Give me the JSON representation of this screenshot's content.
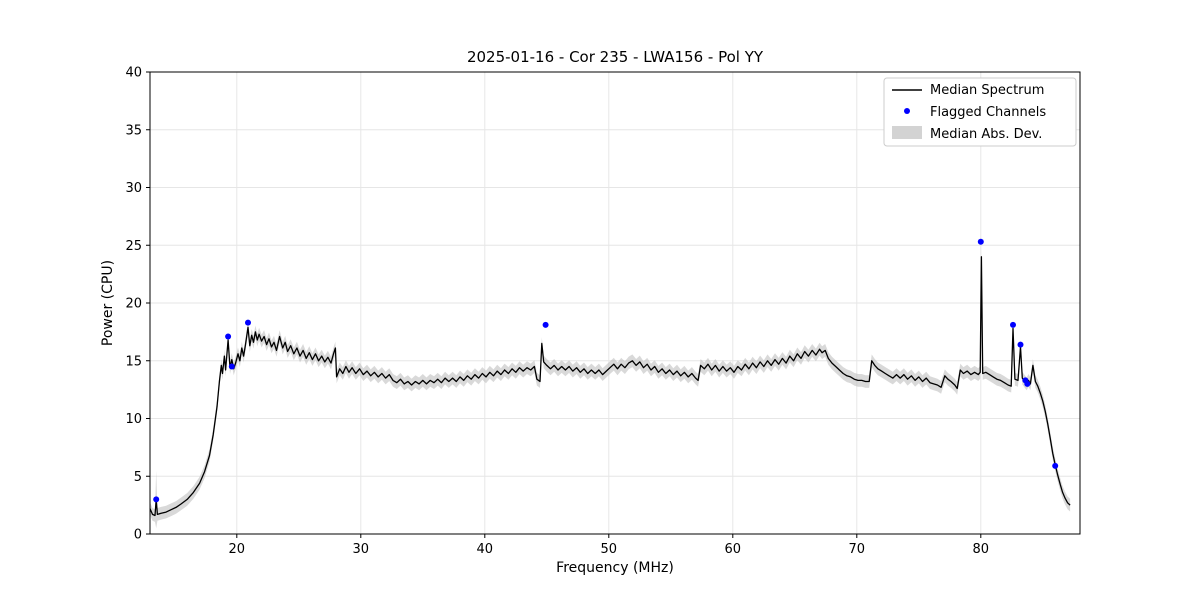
{
  "chart_data": {
    "type": "line",
    "title": "2025-01-16 - Cor 235 - LWA156 - Pol YY",
    "xlabel": "Frequency (MHz)",
    "ylabel": "Power (CPU)",
    "xlim": [
      13,
      88
    ],
    "ylim": [
      0,
      40
    ],
    "xticks": [
      20,
      30,
      40,
      50,
      60,
      70,
      80
    ],
    "yticks": [
      0,
      5,
      10,
      15,
      20,
      25,
      30,
      35,
      40
    ],
    "grid": true,
    "legend": [
      "Median Spectrum",
      "Flagged Channels",
      "Median Abs. Dev."
    ],
    "legend_position": "upper right",
    "colors": {
      "line": "#000000",
      "flagged": "#0000ff",
      "band": "#c0c0c0",
      "grid": "#e6e6e6",
      "background": "#ffffff"
    },
    "mad": {
      "default": 0.55,
      "overrides": [
        [
          13.5,
          2.5
        ]
      ]
    },
    "series": {
      "spectrum": {
        "name": "Median Spectrum",
        "type": "line",
        "points": [
          [
            13.0,
            2.2
          ],
          [
            13.2,
            1.7
          ],
          [
            13.4,
            1.6
          ],
          [
            13.5,
            3.0
          ],
          [
            13.6,
            1.7
          ],
          [
            13.9,
            1.8
          ],
          [
            14.3,
            1.9
          ],
          [
            14.7,
            2.1
          ],
          [
            15.1,
            2.3
          ],
          [
            15.5,
            2.6
          ],
          [
            16.0,
            3.0
          ],
          [
            16.5,
            3.6
          ],
          [
            17.0,
            4.4
          ],
          [
            17.4,
            5.4
          ],
          [
            17.8,
            6.8
          ],
          [
            18.1,
            8.6
          ],
          [
            18.4,
            11.0
          ],
          [
            18.6,
            13.2
          ],
          [
            18.75,
            14.6
          ],
          [
            18.85,
            13.9
          ],
          [
            19.0,
            15.4
          ],
          [
            19.1,
            14.2
          ],
          [
            19.3,
            16.8
          ],
          [
            19.45,
            14.4
          ],
          [
            19.6,
            15.1
          ],
          [
            19.75,
            14.3
          ],
          [
            19.9,
            14.8
          ],
          [
            20.1,
            15.6
          ],
          [
            20.25,
            15.0
          ],
          [
            20.4,
            16.1
          ],
          [
            20.55,
            15.4
          ],
          [
            20.7,
            16.4
          ],
          [
            20.9,
            17.9
          ],
          [
            21.05,
            16.3
          ],
          [
            21.2,
            17.2
          ],
          [
            21.35,
            16.6
          ],
          [
            21.5,
            17.5
          ],
          [
            21.65,
            16.8
          ],
          [
            21.8,
            17.3
          ],
          [
            22.0,
            16.7
          ],
          [
            22.2,
            17.1
          ],
          [
            22.4,
            16.4
          ],
          [
            22.6,
            16.9
          ],
          [
            22.8,
            16.2
          ],
          [
            23.0,
            16.6
          ],
          [
            23.2,
            15.9
          ],
          [
            23.45,
            17.1
          ],
          [
            23.7,
            16.1
          ],
          [
            23.9,
            16.6
          ],
          [
            24.1,
            15.8
          ],
          [
            24.35,
            16.3
          ],
          [
            24.6,
            15.6
          ],
          [
            24.85,
            16.1
          ],
          [
            25.1,
            15.4
          ],
          [
            25.35,
            15.9
          ],
          [
            25.6,
            15.2
          ],
          [
            25.85,
            15.7
          ],
          [
            26.1,
            15.1
          ],
          [
            26.35,
            15.6
          ],
          [
            26.6,
            15.0
          ],
          [
            26.85,
            15.4
          ],
          [
            27.1,
            14.9
          ],
          [
            27.35,
            15.3
          ],
          [
            27.6,
            14.8
          ],
          [
            27.8,
            15.6
          ],
          [
            27.95,
            16.1
          ],
          [
            28.05,
            13.6
          ],
          [
            28.3,
            14.3
          ],
          [
            28.55,
            13.9
          ],
          [
            28.8,
            14.5
          ],
          [
            29.05,
            14.0
          ],
          [
            29.3,
            14.4
          ],
          [
            29.6,
            13.9
          ],
          [
            29.9,
            14.3
          ],
          [
            30.2,
            13.8
          ],
          [
            30.5,
            14.1
          ],
          [
            30.8,
            13.7
          ],
          [
            31.1,
            14.0
          ],
          [
            31.4,
            13.6
          ],
          [
            31.7,
            13.9
          ],
          [
            32.0,
            13.5
          ],
          [
            32.3,
            13.8
          ],
          [
            32.6,
            13.3
          ],
          [
            32.9,
            13.1
          ],
          [
            33.2,
            13.4
          ],
          [
            33.5,
            13.0
          ],
          [
            33.8,
            13.2
          ],
          [
            34.1,
            12.9
          ],
          [
            34.4,
            13.2
          ],
          [
            34.7,
            13.0
          ],
          [
            35.0,
            13.3
          ],
          [
            35.3,
            13.0
          ],
          [
            35.6,
            13.3
          ],
          [
            35.9,
            13.1
          ],
          [
            36.2,
            13.4
          ],
          [
            36.5,
            13.1
          ],
          [
            36.8,
            13.5
          ],
          [
            37.1,
            13.2
          ],
          [
            37.4,
            13.5
          ],
          [
            37.7,
            13.2
          ],
          [
            38.0,
            13.6
          ],
          [
            38.3,
            13.3
          ],
          [
            38.6,
            13.7
          ],
          [
            38.9,
            13.4
          ],
          [
            39.2,
            13.8
          ],
          [
            39.5,
            13.5
          ],
          [
            39.8,
            13.9
          ],
          [
            40.1,
            13.6
          ],
          [
            40.4,
            14.0
          ],
          [
            40.7,
            13.7
          ],
          [
            41.0,
            14.1
          ],
          [
            41.3,
            13.8
          ],
          [
            41.6,
            14.2
          ],
          [
            41.9,
            13.9
          ],
          [
            42.2,
            14.3
          ],
          [
            42.5,
            14.0
          ],
          [
            42.8,
            14.4
          ],
          [
            43.1,
            14.1
          ],
          [
            43.4,
            14.4
          ],
          [
            43.7,
            14.2
          ],
          [
            44.0,
            14.5
          ],
          [
            44.2,
            13.4
          ],
          [
            44.45,
            13.2
          ],
          [
            44.6,
            16.5
          ],
          [
            44.75,
            14.9
          ],
          [
            45.0,
            14.6
          ],
          [
            45.3,
            14.3
          ],
          [
            45.6,
            14.6
          ],
          [
            45.9,
            14.2
          ],
          [
            46.2,
            14.5
          ],
          [
            46.5,
            14.2
          ],
          [
            46.8,
            14.5
          ],
          [
            47.1,
            14.1
          ],
          [
            47.4,
            14.4
          ],
          [
            47.7,
            14.0
          ],
          [
            48.0,
            14.3
          ],
          [
            48.3,
            13.9
          ],
          [
            48.6,
            14.2
          ],
          [
            48.9,
            13.9
          ],
          [
            49.2,
            14.2
          ],
          [
            49.5,
            13.8
          ],
          [
            49.8,
            14.1
          ],
          [
            50.1,
            14.4
          ],
          [
            50.4,
            14.7
          ],
          [
            50.7,
            14.3
          ],
          [
            51.0,
            14.7
          ],
          [
            51.3,
            14.4
          ],
          [
            51.6,
            14.8
          ],
          [
            51.9,
            15.0
          ],
          [
            52.2,
            14.6
          ],
          [
            52.5,
            14.9
          ],
          [
            52.8,
            14.4
          ],
          [
            53.1,
            14.7
          ],
          [
            53.4,
            14.2
          ],
          [
            53.7,
            14.5
          ],
          [
            54.0,
            14.0
          ],
          [
            54.3,
            14.3
          ],
          [
            54.6,
            13.9
          ],
          [
            54.9,
            14.2
          ],
          [
            55.2,
            13.8
          ],
          [
            55.5,
            14.1
          ],
          [
            55.8,
            13.7
          ],
          [
            56.1,
            14.0
          ],
          [
            56.4,
            13.6
          ],
          [
            56.7,
            13.9
          ],
          [
            57.0,
            13.5
          ],
          [
            57.2,
            13.3
          ],
          [
            57.4,
            14.6
          ],
          [
            57.7,
            14.3
          ],
          [
            58.0,
            14.7
          ],
          [
            58.3,
            14.2
          ],
          [
            58.6,
            14.6
          ],
          [
            58.9,
            14.1
          ],
          [
            59.2,
            14.5
          ],
          [
            59.5,
            14.1
          ],
          [
            59.8,
            14.4
          ],
          [
            60.1,
            14.0
          ],
          [
            60.4,
            14.5
          ],
          [
            60.7,
            14.2
          ],
          [
            61.0,
            14.7
          ],
          [
            61.3,
            14.3
          ],
          [
            61.6,
            14.8
          ],
          [
            61.9,
            14.4
          ],
          [
            62.2,
            14.9
          ],
          [
            62.5,
            14.5
          ],
          [
            62.8,
            15.0
          ],
          [
            63.1,
            14.6
          ],
          [
            63.4,
            15.1
          ],
          [
            63.7,
            14.7
          ],
          [
            64.0,
            15.2
          ],
          [
            64.3,
            14.8
          ],
          [
            64.6,
            15.4
          ],
          [
            64.9,
            15.0
          ],
          [
            65.2,
            15.6
          ],
          [
            65.5,
            15.2
          ],
          [
            65.8,
            15.8
          ],
          [
            66.1,
            15.4
          ],
          [
            66.4,
            15.9
          ],
          [
            66.7,
            15.5
          ],
          [
            67.0,
            16.0
          ],
          [
            67.2,
            15.7
          ],
          [
            67.45,
            15.9
          ],
          [
            67.7,
            15.2
          ],
          [
            68.0,
            14.8
          ],
          [
            68.3,
            14.5
          ],
          [
            68.6,
            14.2
          ],
          [
            68.9,
            13.9
          ],
          [
            69.2,
            13.7
          ],
          [
            69.5,
            13.6
          ],
          [
            69.8,
            13.4
          ],
          [
            70.1,
            13.3
          ],
          [
            70.4,
            13.3
          ],
          [
            70.7,
            13.2
          ],
          [
            71.0,
            13.2
          ],
          [
            71.2,
            15.0
          ],
          [
            71.45,
            14.6
          ],
          [
            71.7,
            14.3
          ],
          [
            72.0,
            14.1
          ],
          [
            72.3,
            13.9
          ],
          [
            72.6,
            13.7
          ],
          [
            72.9,
            13.5
          ],
          [
            73.2,
            13.8
          ],
          [
            73.5,
            13.5
          ],
          [
            73.8,
            13.8
          ],
          [
            74.1,
            13.4
          ],
          [
            74.4,
            13.7
          ],
          [
            74.7,
            13.3
          ],
          [
            75.0,
            13.6
          ],
          [
            75.3,
            13.2
          ],
          [
            75.6,
            13.5
          ],
          [
            75.9,
            13.1
          ],
          [
            76.2,
            13.0
          ],
          [
            76.5,
            12.9
          ],
          [
            76.8,
            12.7
          ],
          [
            77.1,
            13.7
          ],
          [
            77.35,
            13.4
          ],
          [
            77.6,
            13.2
          ],
          [
            77.9,
            12.9
          ],
          [
            78.1,
            12.6
          ],
          [
            78.35,
            14.2
          ],
          [
            78.6,
            13.9
          ],
          [
            78.9,
            14.1
          ],
          [
            79.2,
            13.8
          ],
          [
            79.5,
            14.0
          ],
          [
            79.8,
            13.8
          ],
          [
            79.95,
            14.0
          ],
          [
            80.05,
            24.0
          ],
          [
            80.15,
            13.9
          ],
          [
            80.4,
            14.0
          ],
          [
            80.7,
            13.8
          ],
          [
            81.0,
            13.6
          ],
          [
            81.3,
            13.4
          ],
          [
            81.6,
            13.3
          ],
          [
            81.9,
            13.1
          ],
          [
            82.2,
            12.9
          ],
          [
            82.45,
            12.8
          ],
          [
            82.6,
            17.8
          ],
          [
            82.75,
            13.4
          ],
          [
            83.0,
            13.3
          ],
          [
            83.2,
            16.2
          ],
          [
            83.35,
            13.5
          ],
          [
            83.55,
            13.2
          ],
          [
            83.7,
            13.0
          ],
          [
            83.85,
            13.3
          ],
          [
            84.0,
            13.0
          ],
          [
            84.2,
            14.6
          ],
          [
            84.4,
            13.2
          ],
          [
            84.6,
            12.8
          ],
          [
            84.8,
            12.2
          ],
          [
            85.0,
            11.5
          ],
          [
            85.2,
            10.6
          ],
          [
            85.4,
            9.5
          ],
          [
            85.6,
            8.3
          ],
          [
            85.8,
            7.0
          ],
          [
            86.0,
            6.0
          ],
          [
            86.2,
            5.1
          ],
          [
            86.4,
            4.3
          ],
          [
            86.6,
            3.6
          ],
          [
            86.8,
            3.1
          ],
          [
            87.0,
            2.7
          ],
          [
            87.2,
            2.5
          ]
        ]
      },
      "flagged": {
        "name": "Flagged Channels",
        "type": "scatter",
        "points": [
          [
            13.5,
            3.0
          ],
          [
            19.3,
            17.1
          ],
          [
            19.6,
            14.5
          ],
          [
            20.9,
            18.3
          ],
          [
            44.9,
            18.1
          ],
          [
            80.0,
            25.3
          ],
          [
            82.6,
            18.1
          ],
          [
            83.2,
            16.4
          ],
          [
            83.6,
            13.3
          ],
          [
            83.75,
            13.0
          ],
          [
            86.0,
            5.9
          ]
        ]
      }
    }
  }
}
